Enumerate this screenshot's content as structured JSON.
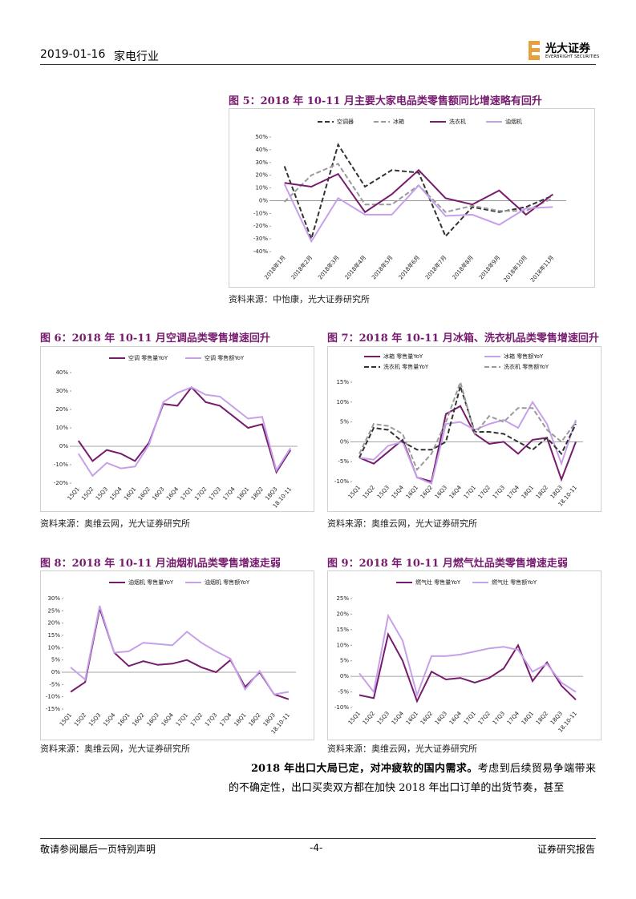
{
  "header": {
    "date": "2019-01-16",
    "industry": "家电行业",
    "logo": "光大证券",
    "logo_en": "EVERBRIGHT SECURITIES"
  },
  "chart_data": [
    {
      "type": "line",
      "title": "图 5：2018 年 10-11 月主要大家电品类零售额同比增速略有回升",
      "source": "资料来源：中怡康，光大证券研究所",
      "categories": [
        "2018年1月",
        "2018年2月",
        "2018年3月",
        "2018年4月",
        "2018年5月",
        "2018年6月",
        "2018年7月",
        "2018年8月",
        "2018年9月",
        "2018年10月",
        "2018年11月"
      ],
      "series": [
        {
          "name": "空调器",
          "color": "#333333",
          "dash": true,
          "values": [
            27,
            -30,
            44,
            11,
            24,
            22,
            -28,
            -5,
            -9,
            -5,
            4
          ]
        },
        {
          "name": "冰箱",
          "color": "#9a9a9a",
          "dash": true,
          "values": [
            -1,
            20,
            29,
            -3,
            -3,
            12,
            -9,
            -4,
            -8,
            -8,
            2
          ]
        },
        {
          "name": "洗衣机",
          "color": "#761b6e",
          "dash": false,
          "values": [
            14,
            11,
            21,
            -9,
            5,
            24,
            2,
            -3,
            8,
            -11,
            5
          ]
        },
        {
          "name": "油烟机",
          "color": "#c7a0ea",
          "dash": false,
          "values": [
            13,
            -32,
            2,
            -11,
            -11,
            12,
            -12,
            -11,
            -19,
            -6,
            -5
          ]
        }
      ],
      "ylim": [
        -40,
        50
      ],
      "yticks": [
        {
          "value": -40,
          "label": "-40%"
        },
        {
          "value": -30,
          "label": "-30%"
        },
        {
          "value": -20,
          "label": "-20%"
        },
        {
          "value": -10,
          "label": "-10%"
        },
        {
          "value": 0,
          "label": "0%"
        },
        {
          "value": 10,
          "label": "10%"
        },
        {
          "value": 20,
          "label": "20%"
        },
        {
          "value": 30,
          "label": "30%"
        },
        {
          "value": 40,
          "label": "40%"
        },
        {
          "value": 50,
          "label": "50%"
        }
      ]
    },
    {
      "type": "line",
      "title": "图 6：2018 年 10-11 月空调品类零售增速回升",
      "source": "资料来源：奥维云网，光大证券研究所",
      "categories": [
        "15Q1",
        "15Q2",
        "15Q3",
        "15Q4",
        "16Q1",
        "16Q2",
        "16Q3",
        "16Q4",
        "17Q1",
        "17Q2",
        "17Q3",
        "17Q4",
        "18Q1",
        "18Q2",
        "18Q3",
        "18.10-11"
      ],
      "series": [
        {
          "name": "空调 零售量YoY",
          "color": "#761b6e",
          "dash": false,
          "values": [
            3,
            -8,
            -2,
            -4,
            -8,
            2,
            23,
            22,
            32,
            24,
            22,
            16,
            10,
            12,
            -14,
            -2
          ]
        },
        {
          "name": "空调 零售额YoY",
          "color": "#c7a0ea",
          "dash": false,
          "values": [
            -4,
            -16,
            -9,
            -12,
            -11,
            1,
            24,
            29,
            32,
            28,
            27,
            21,
            15,
            16,
            -13,
            -1
          ]
        }
      ],
      "ylim": [
        -20,
        40
      ],
      "yticks": [
        {
          "value": -20,
          "label": "-20%"
        },
        {
          "value": -10,
          "label": "-10%"
        },
        {
          "value": 0,
          "label": "0%"
        },
        {
          "value": 10,
          "label": "10%"
        },
        {
          "value": 20,
          "label": "20%"
        },
        {
          "value": 30,
          "label": "30%"
        },
        {
          "value": 40,
          "label": "40%"
        }
      ]
    },
    {
      "type": "line",
      "title": "图 7：2018 年 10-11 月冰箱、洗衣机品类零售增速回升",
      "source": "资料来源：奥维云网，光大证券研究所",
      "categories": [
        "15Q1",
        "15Q2",
        "15Q3",
        "15Q4",
        "16Q1",
        "16Q2",
        "16Q3",
        "16Q4",
        "17Q1",
        "17Q2",
        "17Q3",
        "17Q4",
        "18Q1",
        "18Q2",
        "18Q3",
        "18.10-11"
      ],
      "series": [
        {
          "name": "冰箱 零售量YoY",
          "color": "#761b6e",
          "dash": false,
          "values": [
            -4,
            -5.5,
            -2.5,
            0.5,
            -9,
            -10,
            7,
            9,
            2,
            -0.5,
            0,
            -3,
            0.5,
            1,
            -9.5,
            0
          ]
        },
        {
          "name": "冰箱 零售额YoY",
          "color": "#c7a0ea",
          "dash": false,
          "values": [
            -4,
            -4.5,
            -1,
            0,
            -9,
            -10.5,
            4.5,
            5,
            3,
            4.5,
            5.5,
            3.5,
            10,
            4.5,
            -5.5,
            5.5
          ]
        },
        {
          "name": "洗衣机 零售量YoY",
          "color": "#333333",
          "dash": true,
          "values": [
            -4,
            3.5,
            3,
            0,
            -2,
            -2,
            0,
            14,
            2.5,
            2.5,
            2,
            0,
            -2,
            1,
            -3,
            4.5
          ]
        },
        {
          "name": "洗衣机 零售额YoY",
          "color": "#9a9a9a",
          "dash": true,
          "values": [
            -3,
            4.5,
            4,
            2,
            -7,
            -3,
            5,
            15,
            2,
            6.5,
            5,
            8.5,
            8.5,
            3,
            0,
            5
          ]
        }
      ],
      "ylim": [
        -10,
        15
      ],
      "yticks": [
        {
          "value": -10,
          "label": "-10%"
        },
        {
          "value": -5,
          "label": "-5%"
        },
        {
          "value": 0,
          "label": "0%"
        },
        {
          "value": 5,
          "label": "5%"
        },
        {
          "value": 10,
          "label": "10%"
        },
        {
          "value": 15,
          "label": "15%"
        }
      ]
    },
    {
      "type": "line",
      "title": "图 8：2018 年 10-11 月油烟机品类零售增速走弱",
      "source": "资料来源：奥维云网，光大证券研究所",
      "categories": [
        "15Q1",
        "15Q2",
        "15Q3",
        "15Q4",
        "16Q1",
        "16Q2",
        "16Q3",
        "16Q4",
        "17Q1",
        "17Q2",
        "17Q3",
        "17Q4",
        "18Q1",
        "18Q2",
        "18Q3",
        "18.10-11"
      ],
      "series": [
        {
          "name": "油烟机 零售量YoY",
          "color": "#761b6e",
          "dash": false,
          "values": [
            -8,
            -4,
            26,
            8,
            2.5,
            4.5,
            3,
            3.5,
            5,
            2,
            0,
            5,
            -6,
            0,
            -9,
            -11
          ]
        },
        {
          "name": "油烟机 零售额YoY",
          "color": "#c7a0ea",
          "dash": false,
          "values": [
            2,
            -3,
            27,
            8,
            8.5,
            12,
            11.5,
            11,
            16.5,
            12,
            8.5,
            5.5,
            -7,
            0.5,
            -9,
            -8
          ]
        }
      ],
      "ylim": [
        -15,
        30
      ],
      "yticks": [
        {
          "value": -15,
          "label": "-15%"
        },
        {
          "value": -10,
          "label": "-10%"
        },
        {
          "value": -5,
          "label": "-5%"
        },
        {
          "value": 0,
          "label": "0%"
        },
        {
          "value": 5,
          "label": "5%"
        },
        {
          "value": 10,
          "label": "10%"
        },
        {
          "value": 15,
          "label": "15%"
        },
        {
          "value": 20,
          "label": "20%"
        },
        {
          "value": 25,
          "label": "25%"
        },
        {
          "value": 30,
          "label": "30%"
        }
      ]
    },
    {
      "type": "line",
      "title": "图 9：2018 年 10-11 月燃气灶品类零售增速走弱",
      "source": "资料来源：奥维云网，光大证券研究所",
      "categories": [
        "15Q1",
        "15Q2",
        "15Q3",
        "15Q4",
        "16Q1",
        "16Q2",
        "16Q3",
        "16Q4",
        "17Q1",
        "17Q2",
        "17Q3",
        "17Q4",
        "18Q1",
        "18Q2",
        "18Q3",
        "18.10-11"
      ],
      "series": [
        {
          "name": "燃气灶 零售量YoY",
          "color": "#761b6e",
          "dash": false,
          "values": [
            -6,
            -7,
            13.5,
            5,
            -8,
            1.5,
            -1,
            -0.5,
            -2,
            -0.5,
            2.5,
            10,
            -1.5,
            4.5,
            -3,
            -7.5
          ]
        },
        {
          "name": "燃气灶 零售额YoY",
          "color": "#c7a0ea",
          "dash": false,
          "values": [
            1,
            -5,
            19.5,
            11.5,
            -6,
            6.5,
            6.5,
            7,
            8,
            9,
            9.5,
            8.5,
            1.5,
            4,
            -2,
            -5
          ]
        }
      ],
      "ylim": [
        -10,
        25
      ],
      "yticks": [
        {
          "value": -10,
          "label": "-10%"
        },
        {
          "value": -5,
          "label": "-5%"
        },
        {
          "value": 0,
          "label": "0%"
        },
        {
          "value": 5,
          "label": "5%"
        },
        {
          "value": 10,
          "label": "10%"
        },
        {
          "value": 15,
          "label": "15%"
        },
        {
          "value": 20,
          "label": "20%"
        },
        {
          "value": 25,
          "label": "25%"
        }
      ]
    }
  ],
  "paragraph": {
    "lead": "2018 年出口大局已定，对冲疲软的国内需求。",
    "text": "考虑到后续贸易争端带来的不确定性，出口买卖双方都在加快 2018 年出口订单的出货节奏，甚至"
  },
  "footer": {
    "left": "敬请参阅最后一页特别声明",
    "page": "-4-",
    "right": "证券研究报告"
  }
}
